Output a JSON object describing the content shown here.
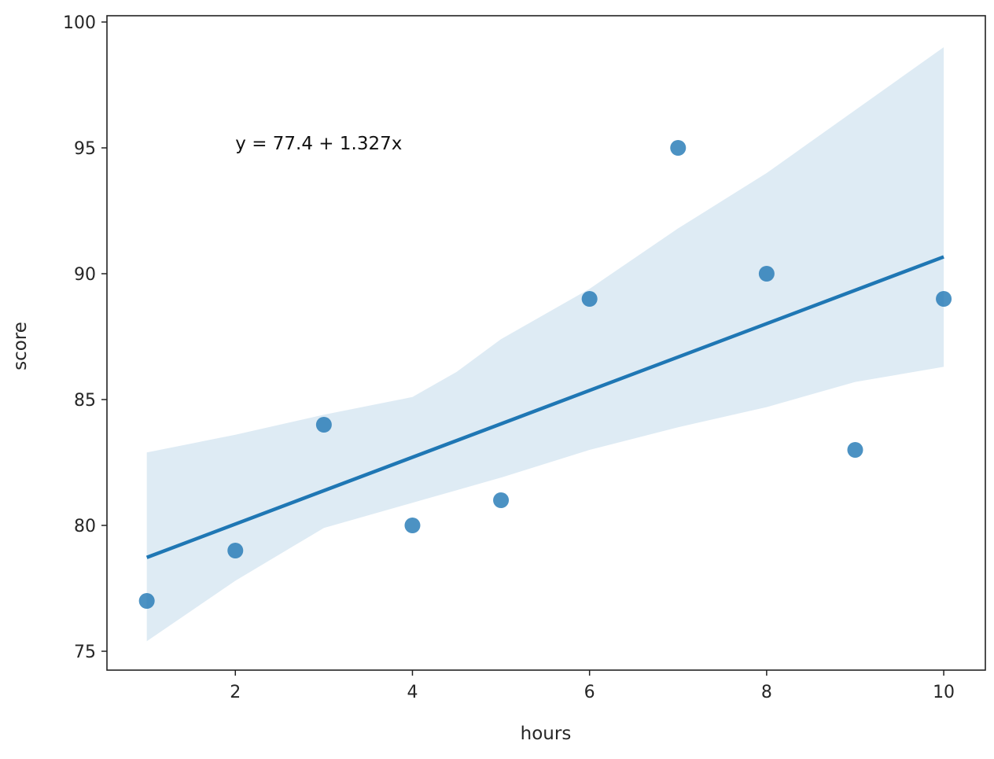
{
  "chart_data": {
    "type": "scatter",
    "title": "",
    "xlabel": "hours",
    "ylabel": "score",
    "xlim": [
      0.55,
      10.47
    ],
    "ylim": [
      74.25,
      100.25
    ],
    "xticks": [
      2,
      4,
      6,
      8,
      10
    ],
    "yticks": [
      75,
      80,
      85,
      90,
      95,
      100
    ],
    "grid": false,
    "colors": {
      "points": "#1f77b4",
      "line": "#1f77b4",
      "band": "#1f77b4"
    },
    "points": {
      "x": [
        1,
        2,
        3,
        4,
        5,
        6,
        7,
        8,
        9,
        10
      ],
      "y": [
        77,
        79,
        84,
        80,
        81,
        89,
        95,
        90,
        83,
        89
      ]
    },
    "regression": {
      "intercept": 77.4,
      "slope": 1.327,
      "x_range": [
        1,
        10
      ]
    },
    "confidence_band": {
      "x": [
        1,
        2,
        3,
        4,
        4.5,
        5,
        6,
        7,
        8,
        9,
        10
      ],
      "upper": [
        82.9,
        83.6,
        84.4,
        85.1,
        86.1,
        87.4,
        89.4,
        91.8,
        94.0,
        96.5,
        99.0
      ],
      "lower": [
        75.4,
        77.8,
        79.9,
        80.9,
        81.4,
        81.9,
        83.0,
        83.9,
        84.7,
        85.7,
        86.3
      ]
    },
    "annotation": {
      "text": "y = 77.4 + 1.327x",
      "x": 2,
      "y": 95
    }
  }
}
